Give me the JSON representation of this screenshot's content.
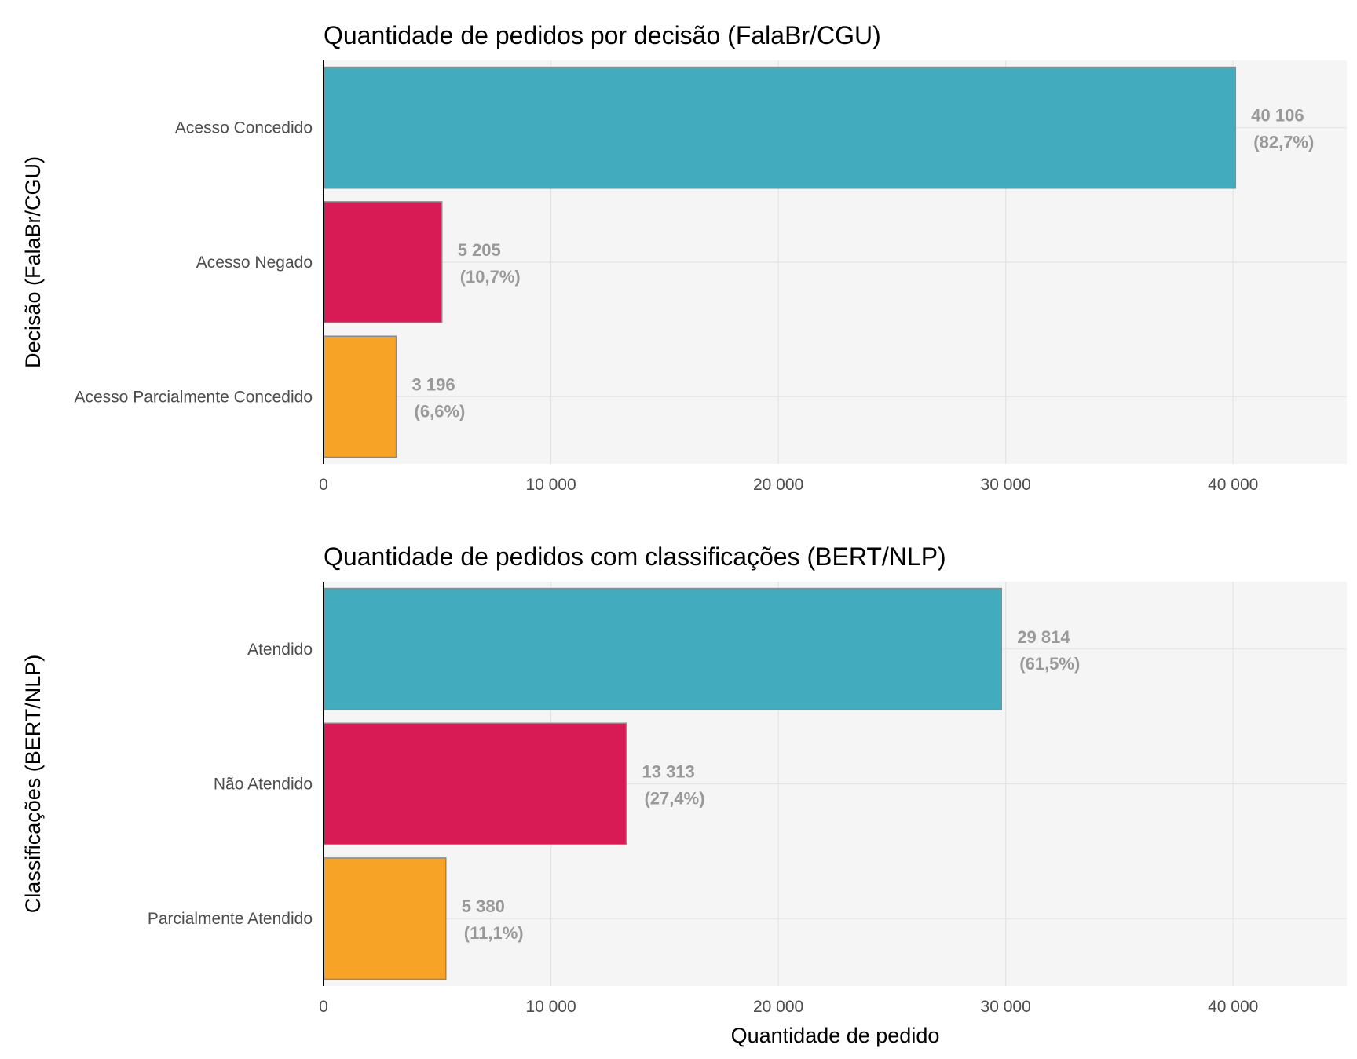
{
  "colors": {
    "panel_bg": "#f5f5f5",
    "grid": "#e4e4e4",
    "bar_outline": "#8a8a8a",
    "label_text": "#999999",
    "axis_text": "#4d4d4d",
    "title_text": "#000000"
  },
  "chart_data": [
    {
      "type": "bar",
      "orientation": "horizontal",
      "title": "Quantidade de pedidos por decisão (FalaBr/CGU)",
      "ylabel": "Decisão (FalaBr/CGU)",
      "xlabel": "",
      "xlim": [
        0,
        45000
      ],
      "xticks": [
        0,
        10000,
        20000,
        30000,
        40000
      ],
      "xtick_labels": [
        "0",
        "10 000",
        "20 000",
        "30 000",
        "40 000"
      ],
      "grid": true,
      "categories": [
        "Acesso Concedido",
        "Acesso Negado",
        "Acesso Parcialmente Concedido"
      ],
      "values": [
        40106,
        5205,
        3196
      ],
      "value_labels": [
        "40 106",
        "5 205",
        "3 196"
      ],
      "percent_labels": [
        "(82,7%)",
        "(10,7%)",
        "(6,6%)"
      ],
      "bar_colors": [
        "#43abbe",
        "#d81b55",
        "#f7a426"
      ]
    },
    {
      "type": "bar",
      "orientation": "horizontal",
      "title": "Quantidade de pedidos com classificações (BERT/NLP)",
      "ylabel": "Classificações (BERT/NLP)",
      "xlabel": "Quantidade de pedido",
      "xlim": [
        0,
        45000
      ],
      "xticks": [
        0,
        10000,
        20000,
        30000,
        40000
      ],
      "xtick_labels": [
        "0",
        "10 000",
        "20 000",
        "30 000",
        "40 000"
      ],
      "grid": true,
      "categories": [
        "Atendido",
        "Não Atendido",
        "Parcialmente Atendido"
      ],
      "values": [
        29814,
        13313,
        5380
      ],
      "value_labels": [
        "29 814",
        "13 313",
        "5 380"
      ],
      "percent_labels": [
        "(61,5%)",
        "(27,4%)",
        "(11,1%)"
      ],
      "bar_colors": [
        "#43abbe",
        "#d81b55",
        "#f7a426"
      ]
    }
  ]
}
